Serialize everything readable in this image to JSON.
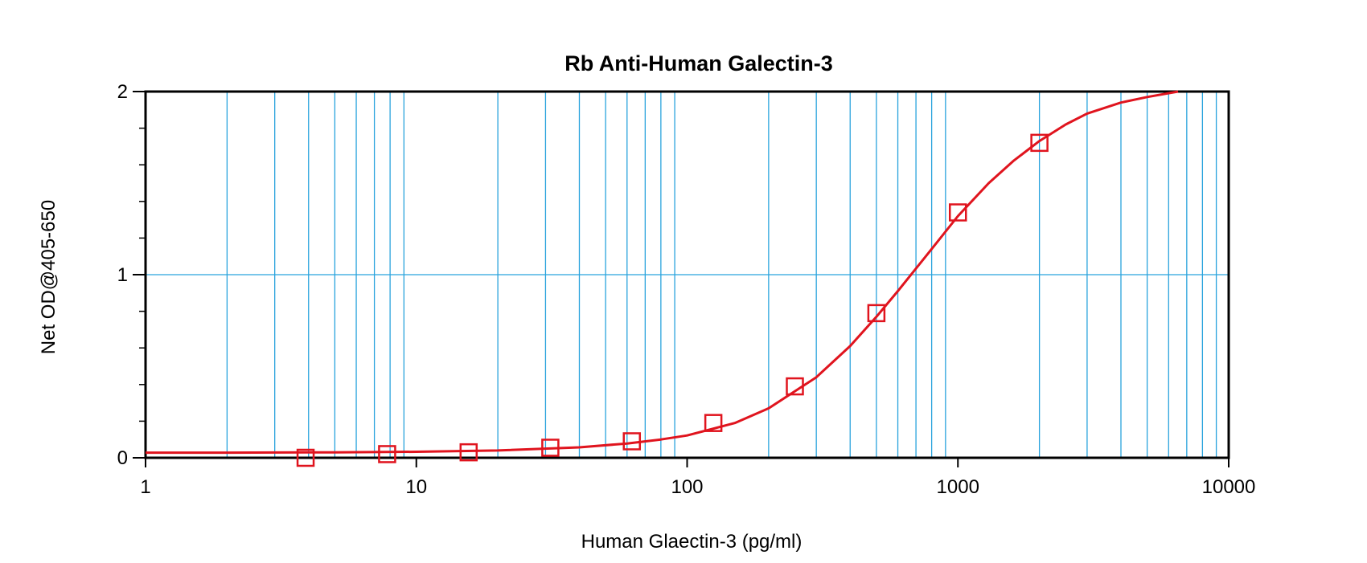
{
  "chart_data": {
    "type": "scatter",
    "title": "Rb Anti-Human Galectin-3",
    "xlabel": "Human Glaectin-3 (pg/ml)",
    "ylabel": "Net OD@405-650",
    "x_scale": "log",
    "xlim": [
      1,
      10000
    ],
    "ylim": [
      0,
      2
    ],
    "x_ticks": [
      1,
      10,
      100,
      1000,
      10000
    ],
    "x_tick_labels": [
      "1",
      "10",
      "100",
      "1000",
      "10000"
    ],
    "y_ticks": [
      0,
      1,
      2
    ],
    "y_tick_labels": [
      "0",
      "1",
      "2"
    ],
    "grid": true,
    "series": [
      {
        "x": [
          3.9,
          7.8,
          15.6,
          31.25,
          62.5,
          125,
          250,
          500,
          1000,
          2000
        ],
        "y": [
          0.0,
          0.02,
          0.03,
          0.055,
          0.09,
          0.19,
          0.39,
          0.79,
          1.34,
          1.72
        ],
        "marker": "square",
        "fit": "4PL"
      }
    ],
    "fit_curve": {
      "x": [
        1,
        2,
        5,
        10,
        20,
        40,
        60,
        80,
        100,
        150,
        200,
        300,
        400,
        500,
        600,
        800,
        1000,
        1300,
        1600,
        2000,
        2500,
        3000,
        4000,
        5000,
        6500
      ],
      "y": [
        0.028,
        0.028,
        0.03,
        0.033,
        0.04,
        0.057,
        0.078,
        0.1,
        0.122,
        0.19,
        0.27,
        0.44,
        0.61,
        0.77,
        0.91,
        1.14,
        1.32,
        1.5,
        1.62,
        1.73,
        1.82,
        1.88,
        1.94,
        1.97,
        2.0
      ]
    },
    "colors": {
      "series": "#e0141e",
      "grid": "#29a3dd",
      "axis": "#000000"
    }
  }
}
